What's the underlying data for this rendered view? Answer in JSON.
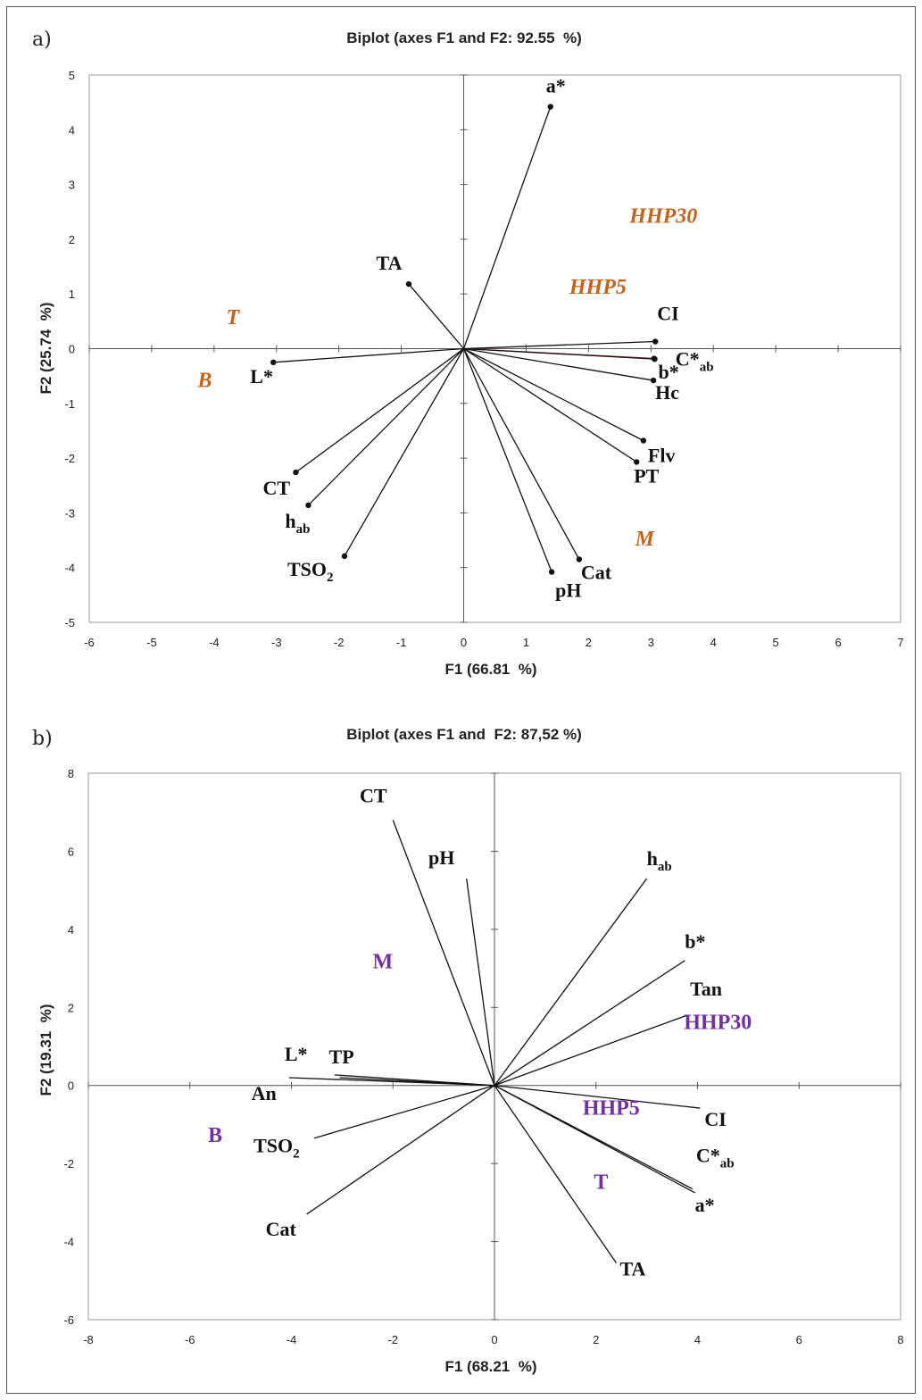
{
  "panels": [
    {
      "label": "a)",
      "title": "Biplot (axes F1 and F2: 92.55  %)",
      "xlabel": "F1 (66.81  %)",
      "ylabel": "F2 (25.74  %)"
    },
    {
      "label": "b)",
      "title": "Biplot (axes F1 and  F2: 87,52 %)",
      "xlabel": "F1 (68.21  %)",
      "ylabel": "F2 (19.31  %)"
    }
  ],
  "chart_data": [
    {
      "type": "scatter",
      "subtype": "biplot",
      "title": "Biplot (axes F1 and F2: 92.55  %)",
      "xlabel": "F1 (66.81  %)",
      "ylabel": "F2 (25.74  %)",
      "xlim": [
        -6,
        7
      ],
      "ylim": [
        -5,
        5
      ],
      "xticks": [
        -6,
        -5,
        -4,
        -3,
        -2,
        -1,
        0,
        1,
        2,
        3,
        4,
        5,
        6,
        7
      ],
      "yticks": [
        -5,
        -4,
        -3,
        -2,
        -1,
        0,
        1,
        2,
        3,
        4,
        5
      ],
      "grid": false,
      "variables": [
        {
          "label": "a*",
          "x": 1.39,
          "y": 4.42
        },
        {
          "label": "TA",
          "x": -0.88,
          "y": 1.18
        },
        {
          "label": "CI",
          "x": 3.07,
          "y": 0.13
        },
        {
          "label": "C*ab",
          "label_main": "C*",
          "label_sub": "ab",
          "x": 3.05,
          "y": -0.18
        },
        {
          "label": "b*",
          "x": 3.06,
          "y": -0.19
        },
        {
          "label": "Hc",
          "x": 3.04,
          "y": -0.58
        },
        {
          "label": "Flv",
          "x": 2.88,
          "y": -1.68
        },
        {
          "label": "PT",
          "x": 2.77,
          "y": -2.07
        },
        {
          "label": "L*",
          "x": -3.05,
          "y": -0.25
        },
        {
          "label": "CT",
          "x": -2.69,
          "y": -2.26
        },
        {
          "label": "hab",
          "label_main": "h",
          "label_sub": "ab",
          "x": -2.49,
          "y": -2.86
        },
        {
          "label": "TSO2",
          "label_main": "TSO",
          "label_sub": "2",
          "x": -1.91,
          "y": -3.79
        },
        {
          "label": "pH",
          "x": 1.41,
          "y": -4.08
        },
        {
          "label": "Cat",
          "x": 1.85,
          "y": -3.85
        }
      ],
      "observations": [
        {
          "label": "HHP30",
          "x": 3.2,
          "y": 2.3
        },
        {
          "label": "HHP5",
          "x": 2.15,
          "y": 1.0
        },
        {
          "label": "T",
          "x": -3.7,
          "y": 0.45
        },
        {
          "label": "B",
          "x": -4.15,
          "y": -0.7
        },
        {
          "label": "M",
          "x": 2.9,
          "y": -3.6
        }
      ],
      "colors": {
        "observations": "#c4611a",
        "axes": "#555555",
        "vector_C*ab": "#8b1a1a"
      }
    },
    {
      "type": "scatter",
      "subtype": "biplot",
      "title": "Biplot (axes F1 and  F2: 87,52 %)",
      "xlabel": "F1 (68.21  %)",
      "ylabel": "F2 (19.31  %)",
      "xlim": [
        -8,
        8
      ],
      "ylim": [
        -6,
        8
      ],
      "xticks": [
        -8,
        -6,
        -4,
        -2,
        0,
        2,
        4,
        6,
        8
      ],
      "yticks": [
        -6,
        -4,
        -2,
        0,
        2,
        4,
        6,
        8
      ],
      "grid": false,
      "variables": [
        {
          "label": "CT",
          "x": -2.0,
          "y": 6.8
        },
        {
          "label": "pH",
          "x": -0.55,
          "y": 5.3
        },
        {
          "label": "hab",
          "label_main": "h",
          "label_sub": "ab",
          "x": 3.0,
          "y": 5.3
        },
        {
          "label": "b*",
          "x": 3.75,
          "y": 3.2
        },
        {
          "label": "Tan",
          "x": 3.8,
          "y": 1.8
        },
        {
          "label": "CI",
          "x": 4.05,
          "y": -0.58
        },
        {
          "label": "C*ab",
          "label_main": "C*",
          "label_sub": "ab",
          "x": 3.9,
          "y": -2.65
        },
        {
          "label": "a*",
          "x": 3.95,
          "y": -2.75
        },
        {
          "label": "TA",
          "x": 2.4,
          "y": -4.55
        },
        {
          "label": "Cat",
          "x": -3.7,
          "y": -3.3
        },
        {
          "label": "TSO2",
          "label_main": "TSO",
          "label_sub": "2",
          "x": -3.55,
          "y": -1.35
        },
        {
          "label": "An",
          "x": -4.05,
          "y": 0.2
        },
        {
          "label": "L*",
          "x": -3.15,
          "y": 0.27
        },
        {
          "label": "TP",
          "x": -3.05,
          "y": 0.2
        }
      ],
      "observations": [
        {
          "label": "M",
          "x": -2.2,
          "y": 3.0
        },
        {
          "label": "HHP30",
          "x": 4.4,
          "y": 1.45
        },
        {
          "label": "HHP5",
          "x": 2.3,
          "y": -0.75
        },
        {
          "label": "T",
          "x": 2.1,
          "y": -2.65
        },
        {
          "label": "B",
          "x": -5.5,
          "y": -1.45
        }
      ],
      "colors": {
        "observations": "#7030a0",
        "axes": "#555555"
      }
    }
  ]
}
